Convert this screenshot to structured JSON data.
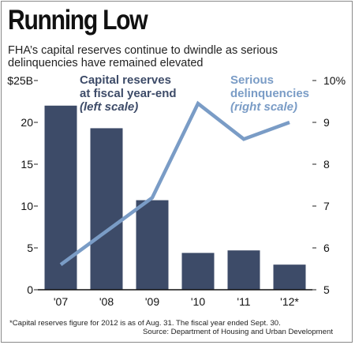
{
  "title": "Running Low",
  "subtitle": "FHA’s capital reserves continue to dwindle as serious delinquencies have remained elevated",
  "chart_data": {
    "type": "bar+line",
    "categories": [
      "'07",
      "'08",
      "'09",
      "'10",
      "'11",
      "'12*"
    ],
    "series": [
      {
        "name_lines": [
          "Capital reserves",
          "at fiscal year-end"
        ],
        "scale_note": "(left scale)",
        "type": "bar",
        "axis": "left",
        "color": "#3d4b68",
        "values": [
          22.0,
          19.3,
          10.7,
          4.4,
          4.7,
          3.0
        ]
      },
      {
        "name_lines": [
          "Serious",
          "delinquencies"
        ],
        "scale_note": "(right scale)",
        "type": "line",
        "axis": "right",
        "color": "#7a9cc6",
        "values": [
          5.6,
          6.4,
          7.2,
          9.45,
          8.6,
          9.0
        ]
      }
    ],
    "left_axis": {
      "min": 0,
      "max": 25,
      "ticks": [
        "0",
        "5",
        "10",
        "15",
        "20",
        "$25B"
      ]
    },
    "right_axis": {
      "min": 5,
      "max": 10,
      "ticks": [
        "5",
        "6",
        "7",
        "8",
        "9",
        "10%"
      ]
    },
    "grid": false
  },
  "footnote": "*Capital reserves figure for 2012 is as of Aug. 31. The fiscal year ended Sept. 30.",
  "source": "Source: Department of Housing and Urban Development"
}
